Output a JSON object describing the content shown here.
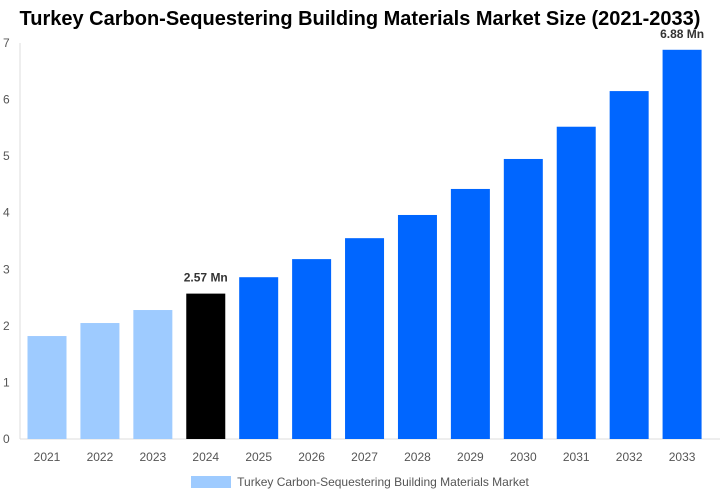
{
  "chart_data": {
    "type": "bar",
    "title": "Turkey Carbon-Sequestering Building Materials Market Size (2021-2033)",
    "categories": [
      "2021",
      "2022",
      "2023",
      "2024",
      "2025",
      "2026",
      "2027",
      "2028",
      "2029",
      "2030",
      "2031",
      "2032",
      "2033"
    ],
    "series": [
      {
        "name": "Turkey Carbon-Sequestering Building Materials Market",
        "values": [
          1.82,
          2.05,
          2.28,
          2.57,
          2.86,
          3.18,
          3.55,
          3.96,
          4.42,
          4.95,
          5.52,
          6.15,
          6.88
        ]
      }
    ],
    "data_labels": {
      "2024": "2.57 Mn",
      "2033": "6.88 Mn"
    },
    "ylim": [
      0,
      7
    ],
    "yticks": [
      0,
      1,
      2,
      3,
      4,
      5,
      6,
      7
    ],
    "grid": false,
    "legend": "bottom",
    "colors": {
      "historical": "#9ecbff",
      "current": "#000000",
      "forecast": "#0066ff"
    }
  }
}
